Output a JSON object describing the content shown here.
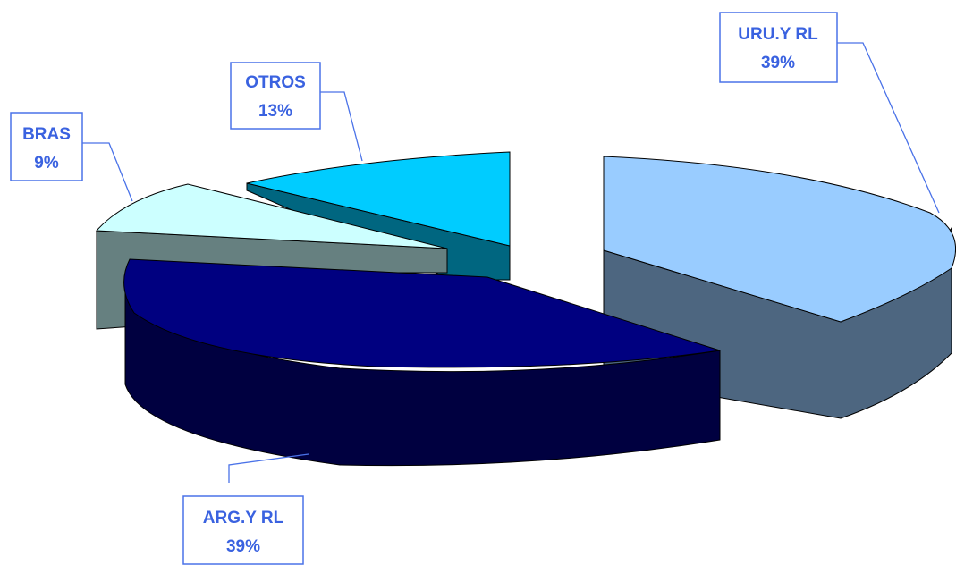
{
  "chart_data": {
    "type": "pie",
    "slices": [
      {
        "label": "URU.Y RL",
        "value_label": "39%",
        "value": 39,
        "color": "#99ccff",
        "side_color": "#4d6680"
      },
      {
        "label": "ARG.Y RL",
        "value_label": "39%",
        "value": 39,
        "color": "#000080",
        "side_color": "#000040"
      },
      {
        "label": "BRAS",
        "value_label": "9%",
        "value": 9,
        "color": "#ccffff",
        "side_color": "#668080"
      },
      {
        "label": "OTROS",
        "value_label": "13%",
        "value": 13,
        "color": "#00ccff",
        "side_color": "#006680"
      }
    ]
  }
}
